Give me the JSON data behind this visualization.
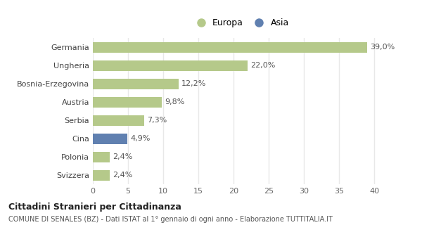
{
  "categories": [
    "Svizzera",
    "Polonia",
    "Cina",
    "Serbia",
    "Austria",
    "Bosnia-Erzegovina",
    "Ungheria",
    "Germania"
  ],
  "values": [
    2.4,
    2.4,
    4.9,
    7.3,
    9.8,
    12.2,
    22.0,
    39.0
  ],
  "labels": [
    "2,4%",
    "2,4%",
    "4,9%",
    "7,3%",
    "9,8%",
    "12,2%",
    "22,0%",
    "39,0%"
  ],
  "colors": [
    "#b5c98a",
    "#b5c98a",
    "#6080b0",
    "#b5c98a",
    "#b5c98a",
    "#b5c98a",
    "#b5c98a",
    "#b5c98a"
  ],
  "europa_color": "#b5c98a",
  "asia_color": "#6080b0",
  "xlim": [
    0,
    42
  ],
  "xticks": [
    0,
    5,
    10,
    15,
    20,
    25,
    30,
    35,
    40
  ],
  "title": "Cittadini Stranieri per Cittadinanza",
  "subtitle": "COMUNE DI SENALES (BZ) - Dati ISTAT al 1° gennaio di ogni anno - Elaborazione TUTTITALIA.IT",
  "bg_color": "#ffffff",
  "grid_color": "#e8e8e8",
  "bar_height": 0.6,
  "label_fontsize": 8,
  "ytick_fontsize": 8,
  "xtick_fontsize": 8
}
